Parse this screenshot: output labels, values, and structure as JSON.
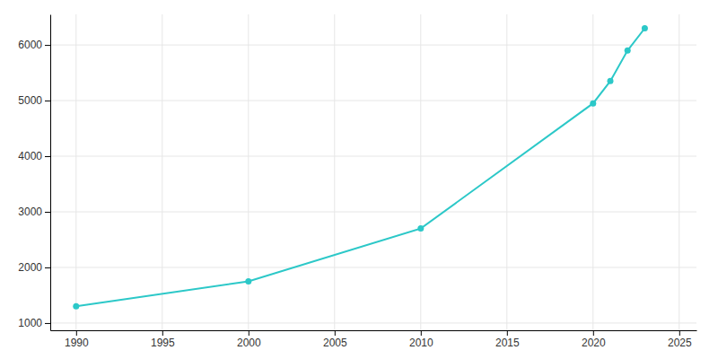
{
  "chart_data": {
    "type": "line",
    "x": [
      1990,
      2000,
      2010,
      2020,
      2021,
      2022,
      2023
    ],
    "values": [
      1300,
      1750,
      2700,
      4950,
      5350,
      5900,
      6300
    ],
    "color": "#2cc8c8",
    "marker": "circle",
    "xlim": [
      1988.5,
      2026
    ],
    "ylim": [
      870,
      6550
    ],
    "xticks": [
      1990,
      1995,
      2000,
      2005,
      2010,
      2015,
      2020,
      2025
    ],
    "yticks": [
      1000,
      2000,
      3000,
      4000,
      5000,
      6000
    ],
    "grid": true
  }
}
